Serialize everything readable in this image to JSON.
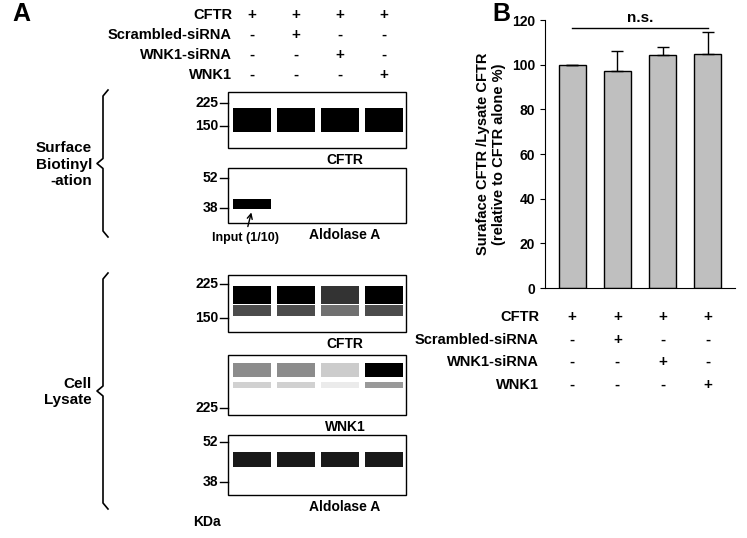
{
  "panel_labels": [
    "A",
    "B"
  ],
  "blot_panel": {
    "conditions": [
      {
        "name": "CFTR",
        "signs": [
          "+",
          "+",
          "+",
          "+"
        ]
      },
      {
        "name": "Scrambled-siRNA",
        "signs": [
          "-",
          "+",
          "-",
          "-"
        ]
      },
      {
        "name": "WNK1-siRNA",
        "signs": [
          "-",
          "-",
          "+",
          "-"
        ]
      },
      {
        "name": "WNK1",
        "signs": [
          "-",
          "-",
          "-",
          "+"
        ]
      }
    ],
    "groups": [
      {
        "label": "Surface\nBiotinyl\n-ation",
        "blots": [
          {
            "label": "CFTR",
            "ticks": [
              225,
              150
            ],
            "intensities": [
              1.0,
              1.0,
              1.0,
              1.0
            ]
          },
          {
            "label": "Aldolase A",
            "ticks": [
              52,
              38
            ],
            "intensities": [
              1.0,
              0,
              0,
              0
            ],
            "note": "Input (1/10)"
          }
        ]
      },
      {
        "label": "Cell\nLysate",
        "blots": [
          {
            "label": "CFTR",
            "ticks": [
              225,
              150
            ],
            "intensities": [
              1.0,
              1.0,
              0.8,
              1.0
            ]
          },
          {
            "label": "WNK1",
            "ticks": [
              225
            ],
            "intensities": [
              0.45,
              0.45,
              0.2,
              1.0
            ]
          },
          {
            "label": "Aldolase A",
            "ticks": [
              52,
              38
            ],
            "intensities": [
              0.9,
              0.9,
              0.9,
              0.9
            ]
          }
        ]
      }
    ],
    "unit": "KDa"
  },
  "chart_data": {
    "type": "bar",
    "categories": [
      null,
      null,
      null,
      null
    ],
    "values": [
      100,
      97,
      104.5,
      105
    ],
    "errors": [
      0,
      9,
      3.5,
      9.5
    ],
    "color": "#bfbfbf",
    "ylim": [
      0,
      120
    ],
    "yticks": [
      0,
      20,
      40,
      60,
      80,
      100,
      120
    ],
    "y_label": "Suraface CFTR /Lysate CFTR\n(relative to CFTR alone %)",
    "annotation": "n.s.",
    "tick_labels": "y",
    "conditions": [
      {
        "name": "CFTR",
        "signs": [
          "+",
          "+",
          "+",
          "+"
        ]
      },
      {
        "name": "Scrambled-siRNA",
        "signs": [
          "-",
          "+",
          "-",
          "-"
        ]
      },
      {
        "name": "WNK1-siRNA",
        "signs": [
          "-",
          "-",
          "+",
          "-"
        ]
      },
      {
        "name": "WNK1",
        "signs": [
          "-",
          "-",
          "-",
          "+"
        ]
      }
    ]
  }
}
